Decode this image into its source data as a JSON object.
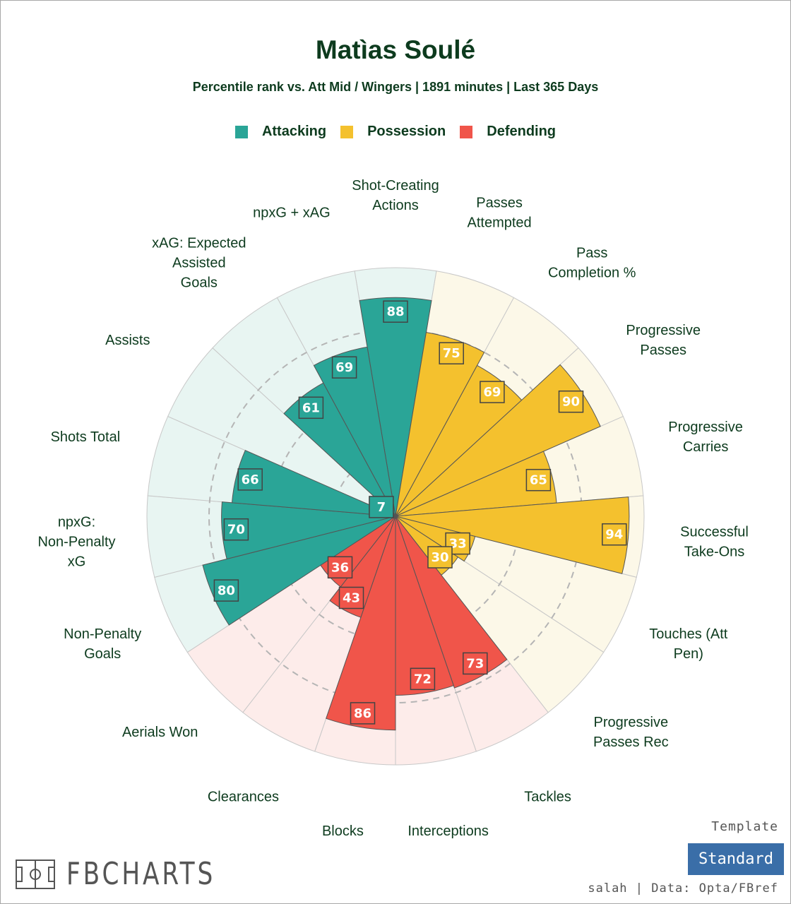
{
  "header": {
    "title": "Matìas Soulé",
    "subtitle": "Percentile rank vs. Att Mid / Wingers | 1891 minutes | Last 365 Days"
  },
  "colors": {
    "attacking": "#2aa597",
    "possession": "#f4c12e",
    "defending": "#f0554a",
    "attacking_bg": "#e8f5f2",
    "possession_bg": "#fcf8e8",
    "defending_bg": "#fdecea",
    "text": "#0d3b1e"
  },
  "chart_data": {
    "type": "radar-bar",
    "rmax": 100,
    "ring_ticks": [
      25,
      50,
      75
    ],
    "categories": [
      {
        "name": "Attacking",
        "color": "#2aa597"
      },
      {
        "name": "Possession",
        "color": "#f4c12e"
      },
      {
        "name": "Defending",
        "color": "#f0554a"
      }
    ],
    "stats": [
      {
        "label": "Shot-Creating Actions",
        "value": 88,
        "category": "Attacking"
      },
      {
        "label": "Passes Attempted",
        "value": 75,
        "category": "Possession"
      },
      {
        "label": "Pass Completion %",
        "value": 69,
        "category": "Possession"
      },
      {
        "label": "Progressive Passes",
        "value": 90,
        "category": "Possession"
      },
      {
        "label": "Progressive Carries",
        "value": 65,
        "category": "Possession"
      },
      {
        "label": "Successful Take-Ons",
        "value": 94,
        "category": "Possession"
      },
      {
        "label": "Touches (Att Pen)",
        "value": 33,
        "category": "Possession"
      },
      {
        "label": "Progressive Passes Rec",
        "value": 30,
        "category": "Possession"
      },
      {
        "label": "Tackles",
        "value": 73,
        "category": "Defending"
      },
      {
        "label": "Interceptions",
        "value": 72,
        "category": "Defending"
      },
      {
        "label": "Blocks",
        "value": 86,
        "category": "Defending"
      },
      {
        "label": "Clearances",
        "value": 43,
        "category": "Defending"
      },
      {
        "label": "Aerials Won",
        "value": 36,
        "category": "Defending"
      },
      {
        "label": "Non-Penalty Goals",
        "value": 80,
        "category": "Attacking"
      },
      {
        "label": "npxG: Non-Penalty xG",
        "value": 70,
        "category": "Attacking"
      },
      {
        "label": "Shots Total",
        "value": 66,
        "category": "Attacking"
      },
      {
        "label": "Assists",
        "value": 7,
        "category": "Attacking"
      },
      {
        "label": "xAG: Expected Assisted Goals",
        "value": 61,
        "category": "Attacking"
      },
      {
        "label": "npxG + xAG",
        "value": 69,
        "category": "Attacking"
      }
    ]
  },
  "footer": {
    "template_label": "Template",
    "template_value": "Standard",
    "credits": "salah | Data: Opta/FBref",
    "brand": "FBCHARTS",
    "brand_icon": "pitch-icon"
  }
}
